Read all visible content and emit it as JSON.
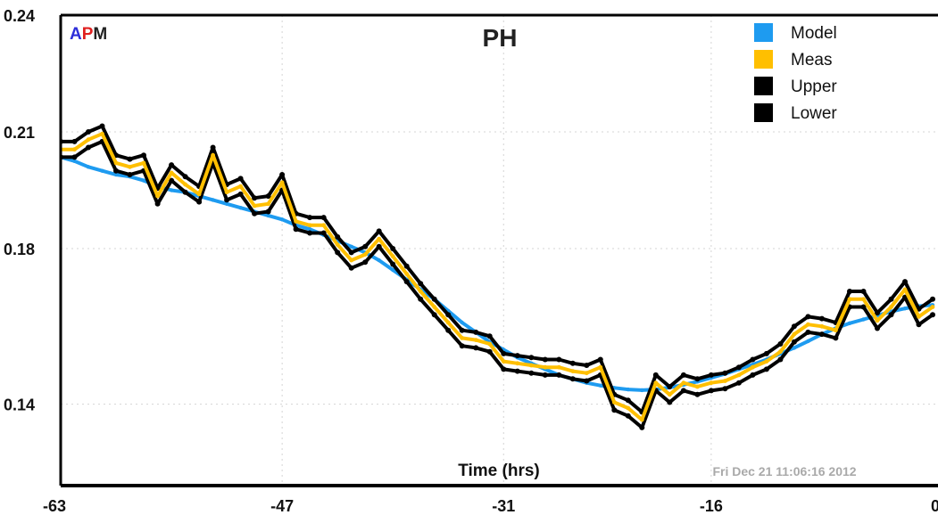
{
  "chart_data": {
    "type": "line",
    "title": "PH",
    "xlabel": "Time (hrs)",
    "ylabel": "",
    "xlim": [
      -63,
      0
    ],
    "ylim": [
      0.105,
      0.24
    ],
    "x_ticks": [
      -63,
      -47,
      -31,
      -16,
      0
    ],
    "y_ticks": [
      0.14,
      0.18,
      0.21,
      0.24
    ],
    "x_tick_labels": [
      "-63",
      "-47",
      "-31",
      "-16",
      "0"
    ],
    "y_tick_labels": [
      "0.14",
      "0.18",
      "0.21",
      "0.24"
    ],
    "grid": true,
    "legend_position": "top-right",
    "logo": {
      "a": "A",
      "p": "P",
      "m": "M"
    },
    "timestamp": "Fri Dec 21 11:06:16 2012",
    "x": [
      -63,
      -62,
      -61,
      -60,
      -59,
      -58,
      -57,
      -56,
      -55,
      -54,
      -53,
      -52,
      -51,
      -50,
      -49,
      -48,
      -47,
      -46,
      -45,
      -44,
      -43,
      -42,
      -41,
      -40,
      -39,
      -38,
      -37,
      -36,
      -35,
      -34,
      -33,
      -32,
      -31,
      -30,
      -29,
      -28,
      -27,
      -26,
      -25,
      -24,
      -23,
      -22,
      -21,
      -20,
      -19,
      -18,
      -17,
      -16,
      -15,
      -14,
      -13,
      -12,
      -11,
      -10,
      -9,
      -8,
      -7,
      -6,
      -5,
      -4,
      -3,
      -2,
      -1,
      0
    ],
    "series": [
      {
        "name": "Model",
        "color": "#1e9bf0",
        "values": [
          0.2035,
          0.2025,
          0.201,
          0.2,
          0.199,
          0.1985,
          0.1975,
          0.196,
          0.195,
          0.1945,
          0.1935,
          0.1925,
          0.1915,
          0.1905,
          0.1895,
          0.1885,
          0.1875,
          0.186,
          0.185,
          0.1835,
          0.182,
          0.1805,
          0.179,
          0.177,
          0.1745,
          0.172,
          0.1695,
          0.167,
          0.164,
          0.161,
          0.1585,
          0.156,
          0.154,
          0.152,
          0.1505,
          0.149,
          0.1475,
          0.1465,
          0.1455,
          0.1448,
          0.1442,
          0.1438,
          0.1436,
          0.1438,
          0.1443,
          0.145,
          0.1458,
          0.1468,
          0.1478,
          0.149,
          0.1502,
          0.1515,
          0.153,
          0.1545,
          0.1562,
          0.158,
          0.1595,
          0.1608,
          0.1618,
          0.1628,
          0.1638,
          0.1646,
          0.1652,
          0.1655
        ]
      },
      {
        "name": "Meas",
        "color": "#ffbf00",
        "values": [
          0.2055,
          0.2055,
          0.208,
          0.2095,
          0.202,
          0.201,
          0.202,
          0.1935,
          0.1995,
          0.1965,
          0.194,
          0.204,
          0.1945,
          0.196,
          0.191,
          0.1915,
          0.197,
          0.187,
          0.186,
          0.186,
          0.181,
          0.177,
          0.1785,
          0.1825,
          0.178,
          0.1735,
          0.169,
          0.165,
          0.161,
          0.157,
          0.1565,
          0.1555,
          0.151,
          0.1505,
          0.15,
          0.1495,
          0.1495,
          0.1485,
          0.148,
          0.1495,
          0.1405,
          0.139,
          0.136,
          0.1455,
          0.1425,
          0.1455,
          0.1445,
          0.1455,
          0.146,
          0.1475,
          0.1495,
          0.151,
          0.1535,
          0.158,
          0.1605,
          0.16,
          0.159,
          0.167,
          0.167,
          0.1615,
          0.165,
          0.1695,
          0.1625,
          0.165
        ]
      },
      {
        "name": "Upper",
        "color": "#000000",
        "values": [
          0.2075,
          0.2075,
          0.21,
          0.2115,
          0.204,
          0.203,
          0.204,
          0.1955,
          0.2015,
          0.1985,
          0.196,
          0.206,
          0.1965,
          0.198,
          0.193,
          0.1935,
          0.199,
          0.189,
          0.188,
          0.188,
          0.183,
          0.179,
          0.1805,
          0.1845,
          0.18,
          0.1755,
          0.171,
          0.167,
          0.163,
          0.159,
          0.1585,
          0.1575,
          0.153,
          0.1525,
          0.152,
          0.1515,
          0.1515,
          0.1505,
          0.15,
          0.1515,
          0.1425,
          0.141,
          0.138,
          0.1475,
          0.1445,
          0.1475,
          0.1465,
          0.1475,
          0.148,
          0.1495,
          0.1515,
          0.153,
          0.1555,
          0.16,
          0.1625,
          0.162,
          0.161,
          0.169,
          0.169,
          0.1635,
          0.167,
          0.1715,
          0.1645,
          0.167
        ]
      },
      {
        "name": "Lower",
        "color": "#000000",
        "values": [
          0.2035,
          0.2035,
          0.206,
          0.2075,
          0.2,
          0.199,
          0.2,
          0.1915,
          0.1975,
          0.1945,
          0.192,
          0.202,
          0.1925,
          0.194,
          0.189,
          0.1895,
          0.195,
          0.185,
          0.184,
          0.184,
          0.179,
          0.175,
          0.1765,
          0.1805,
          0.176,
          0.1715,
          0.167,
          0.163,
          0.159,
          0.155,
          0.1545,
          0.1535,
          0.149,
          0.1485,
          0.148,
          0.1475,
          0.1475,
          0.1465,
          0.146,
          0.1475,
          0.1385,
          0.137,
          0.134,
          0.1435,
          0.1405,
          0.1435,
          0.1425,
          0.1435,
          0.144,
          0.1455,
          0.1475,
          0.149,
          0.1515,
          0.156,
          0.1585,
          0.158,
          0.157,
          0.165,
          0.165,
          0.1595,
          0.163,
          0.1675,
          0.1605,
          0.163
        ]
      }
    ]
  }
}
